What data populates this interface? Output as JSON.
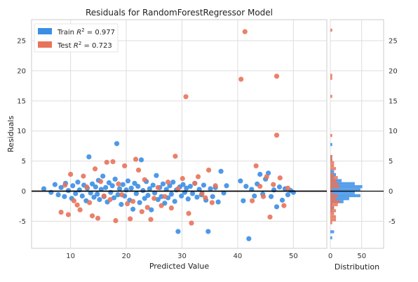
{
  "chart_data": {
    "type": "scatter",
    "title": "Residuals for RandomForestRegressor Model",
    "xlabel": "Predicted Value",
    "ylabel": "Residuals",
    "xlim": [
      3,
      56
    ],
    "ylim": [
      -9.5,
      28.5
    ],
    "xticks": [
      10,
      20,
      30,
      40,
      50
    ],
    "yticks": [
      -5,
      0,
      5,
      10,
      15,
      20,
      25
    ],
    "grid": true,
    "legend": "top-left",
    "hist_xlabel": "Distribution",
    "hist_xlim": [
      0,
      85
    ],
    "hist_xticks": [
      0,
      50
    ],
    "colors": {
      "train": "#3a8ee6",
      "test": "#e8735a",
      "zero_line": "#000000"
    },
    "series": [
      {
        "name": "Train R² = 0.977",
        "legend_prefix": "Train ",
        "legend_r2": "0.977",
        "points": [
          [
            5.2,
            0.4
          ],
          [
            6.5,
            -0.2
          ],
          [
            7.2,
            1.1
          ],
          [
            7.8,
            -0.6
          ],
          [
            8.3,
            0.6
          ],
          [
            8.9,
            -0.9
          ],
          [
            9.1,
            1.3
          ],
          [
            9.6,
            0.1
          ],
          [
            10.2,
            -1.2
          ],
          [
            10.4,
            0.9
          ],
          [
            10.9,
            -0.4
          ],
          [
            11.3,
            1.5
          ],
          [
            11.6,
            0.2
          ],
          [
            12.1,
            -0.8
          ],
          [
            12.4,
            1.0
          ],
          [
            12.8,
            -1.6
          ],
          [
            13.0,
            0.5
          ],
          [
            13.3,
            5.7
          ],
          [
            13.6,
            -0.3
          ],
          [
            13.9,
            1.2
          ],
          [
            14.2,
            -1.0
          ],
          [
            14.5,
            0.7
          ],
          [
            14.8,
            -0.5
          ],
          [
            15.0,
            1.8
          ],
          [
            15.2,
            -1.4
          ],
          [
            15.5,
            0.3
          ],
          [
            15.8,
            2.5
          ],
          [
            16.0,
            -0.9
          ],
          [
            16.3,
            0.6
          ],
          [
            16.6,
            -1.8
          ],
          [
            16.9,
            1.4
          ],
          [
            17.2,
            -0.2
          ],
          [
            17.5,
            0.9
          ],
          [
            17.8,
            -1.1
          ],
          [
            18.0,
            2.0
          ],
          [
            18.3,
            7.9
          ],
          [
            18.5,
            -0.6
          ],
          [
            18.8,
            0.4
          ],
          [
            19.1,
            -2.2
          ],
          [
            19.4,
            1.1
          ],
          [
            19.7,
            -0.8
          ],
          [
            20.0,
            0.2
          ],
          [
            20.3,
            1.7
          ],
          [
            20.6,
            -1.5
          ],
          [
            20.9,
            0.5
          ],
          [
            21.2,
            -3.0
          ],
          [
            21.5,
            1.3
          ],
          [
            21.8,
            -0.4
          ],
          [
            22.1,
            0.8
          ],
          [
            22.4,
            -1.9
          ],
          [
            22.7,
            5.2
          ],
          [
            23.0,
            0.1
          ],
          [
            23.3,
            -1.2
          ],
          [
            23.6,
            1.6
          ],
          [
            23.9,
            -0.7
          ],
          [
            24.2,
            0.4
          ],
          [
            24.5,
            -3.1
          ],
          [
            24.8,
            1.0
          ],
          [
            25.1,
            -0.3
          ],
          [
            25.4,
            2.6
          ],
          [
            25.7,
            -1.4
          ],
          [
            26.0,
            0.6
          ],
          [
            26.3,
            -0.9
          ],
          [
            26.6,
            1.2
          ],
          [
            26.9,
            -2.0
          ],
          [
            27.2,
            0.3
          ],
          [
            27.5,
            -1.1
          ],
          [
            27.8,
            0.9
          ],
          [
            28.1,
            -0.5
          ],
          [
            28.4,
            1.5
          ],
          [
            28.7,
            -1.7
          ],
          [
            29.0,
            0.2
          ],
          [
            29.3,
            -6.7
          ],
          [
            29.6,
            0.7
          ],
          [
            29.9,
            -0.8
          ],
          [
            30.2,
            1.1
          ],
          [
            30.5,
            -0.2
          ],
          [
            30.8,
            0.5
          ],
          [
            31.1,
            -1.3
          ],
          [
            31.5,
            0.8
          ],
          [
            31.9,
            -0.4
          ],
          [
            32.3,
            1.3
          ],
          [
            32.7,
            -1.0
          ],
          [
            33.1,
            0.3
          ],
          [
            33.5,
            -0.6
          ],
          [
            33.9,
            1.0
          ],
          [
            34.3,
            -1.5
          ],
          [
            34.7,
            -6.7
          ],
          [
            35.1,
            0.4
          ],
          [
            35.5,
            -0.9
          ],
          [
            36.0,
            0.6
          ],
          [
            36.5,
            -1.8
          ],
          [
            37.0,
            3.3
          ],
          [
            37.5,
            -0.3
          ],
          [
            38.0,
            0.9
          ],
          [
            40.5,
            1.7
          ],
          [
            41.0,
            -1.6
          ],
          [
            41.5,
            0.8
          ],
          [
            42.0,
            -7.9
          ],
          [
            42.5,
            0.3
          ],
          [
            43.0,
            -0.8
          ],
          [
            43.5,
            1.2
          ],
          [
            44.0,
            2.8
          ],
          [
            44.5,
            -0.5
          ],
          [
            45.0,
            2.0
          ],
          [
            45.5,
            3.0
          ],
          [
            46.0,
            -0.9
          ],
          [
            46.5,
            0.2
          ],
          [
            47.0,
            -2.6
          ],
          [
            47.5,
            0.7
          ],
          [
            48.0,
            -1.5
          ],
          [
            48.5,
            0.4
          ],
          [
            49.0,
            -0.6
          ],
          [
            49.5,
            0.1
          ],
          [
            50.0,
            -0.2
          ]
        ]
      },
      {
        "name": "Test R² = 0.723",
        "legend_prefix": "Test ",
        "legend_r2": "0.723",
        "points": [
          [
            8.3,
            -3.5
          ],
          [
            9.0,
            1.0
          ],
          [
            9.6,
            -3.9
          ],
          [
            10.0,
            2.8
          ],
          [
            10.6,
            -1.6
          ],
          [
            11.2,
            -2.3
          ],
          [
            11.7,
            -3.1
          ],
          [
            12.3,
            2.5
          ],
          [
            12.9,
            0.7
          ],
          [
            13.4,
            -1.9
          ],
          [
            13.9,
            -4.1
          ],
          [
            14.4,
            3.7
          ],
          [
            14.9,
            -4.5
          ],
          [
            15.4,
            1.6
          ],
          [
            16.0,
            -0.8
          ],
          [
            16.5,
            4.8
          ],
          [
            17.1,
            -1.4
          ],
          [
            17.6,
            4.9
          ],
          [
            18.1,
            -4.9
          ],
          [
            18.6,
            1.2
          ],
          [
            19.2,
            -0.6
          ],
          [
            19.7,
            4.2
          ],
          [
            20.2,
            -2.1
          ],
          [
            20.7,
            -4.6
          ],
          [
            21.2,
            -1.7
          ],
          [
            21.7,
            5.3
          ],
          [
            22.2,
            3.5
          ],
          [
            22.8,
            -3.4
          ],
          [
            23.3,
            1.9
          ],
          [
            23.8,
            -2.7
          ],
          [
            24.4,
            -4.7
          ],
          [
            25.0,
            -1.2
          ],
          [
            25.7,
            0.6
          ],
          [
            26.3,
            -2.4
          ],
          [
            26.9,
            -0.9
          ],
          [
            27.5,
            1.5
          ],
          [
            28.1,
            -2.8
          ],
          [
            28.8,
            5.8
          ],
          [
            29.3,
            0.4
          ],
          [
            30.1,
            2.1
          ],
          [
            30.7,
            15.7
          ],
          [
            31.2,
            -3.7
          ],
          [
            31.7,
            -5.3
          ],
          [
            32.3,
            1.3
          ],
          [
            32.9,
            2.4
          ],
          [
            33.6,
            -0.4
          ],
          [
            34.2,
            -1.1
          ],
          [
            34.8,
            3.5
          ],
          [
            35.4,
            -1.9
          ],
          [
            36.0,
            0.9
          ],
          [
            40.6,
            18.6
          ],
          [
            41.3,
            26.5
          ],
          [
            42.6,
            -1.6
          ],
          [
            43.3,
            4.2
          ],
          [
            44.0,
            0.8
          ],
          [
            44.6,
            -0.9
          ],
          [
            45.2,
            2.4
          ],
          [
            45.8,
            -4.3
          ],
          [
            46.4,
            1.1
          ],
          [
            47.0,
            9.3
          ],
          [
            47.0,
            19.1
          ],
          [
            47.6,
            2.2
          ],
          [
            48.3,
            -2.4
          ],
          [
            49.0,
            0.5
          ]
        ]
      }
    ]
  }
}
